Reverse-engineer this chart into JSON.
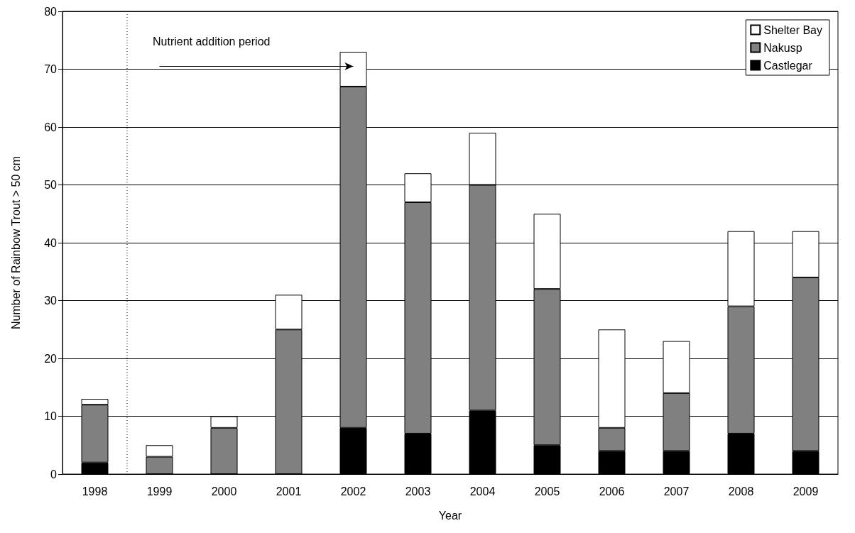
{
  "chart_data": {
    "type": "bar",
    "stacked": true,
    "xlabel": "Year",
    "ylabel": "Number of Rainbow Trout > 50 cm",
    "categories": [
      "1998",
      "1999",
      "2000",
      "2001",
      "2002",
      "2003",
      "2004",
      "2005",
      "2006",
      "2007",
      "2008",
      "2009"
    ],
    "series": [
      {
        "name": "Castlegar",
        "color": "#000000",
        "values": [
          2,
          0,
          0,
          0,
          8,
          7,
          11,
          5,
          4,
          4,
          7,
          4
        ]
      },
      {
        "name": "Nakusp",
        "color": "#808080",
        "values": [
          10,
          3,
          8,
          25,
          59,
          40,
          39,
          27,
          4,
          10,
          22,
          30
        ]
      },
      {
        "name": "Shelter Bay",
        "color": "#ffffff",
        "values": [
          1,
          2,
          2,
          6,
          6,
          5,
          9,
          13,
          17,
          9,
          13,
          8
        ]
      }
    ],
    "ylim": [
      0,
      80
    ],
    "yticks": [
      0,
      10,
      20,
      30,
      40,
      50,
      60,
      70,
      80
    ],
    "grid": "y",
    "legend": "top right",
    "ref_lines": [
      {
        "axis": "x",
        "value": "1999",
        "line_style": "dotted",
        "color": "#000000"
      }
    ],
    "annotations": [
      "Nutrient addition period"
    ]
  }
}
